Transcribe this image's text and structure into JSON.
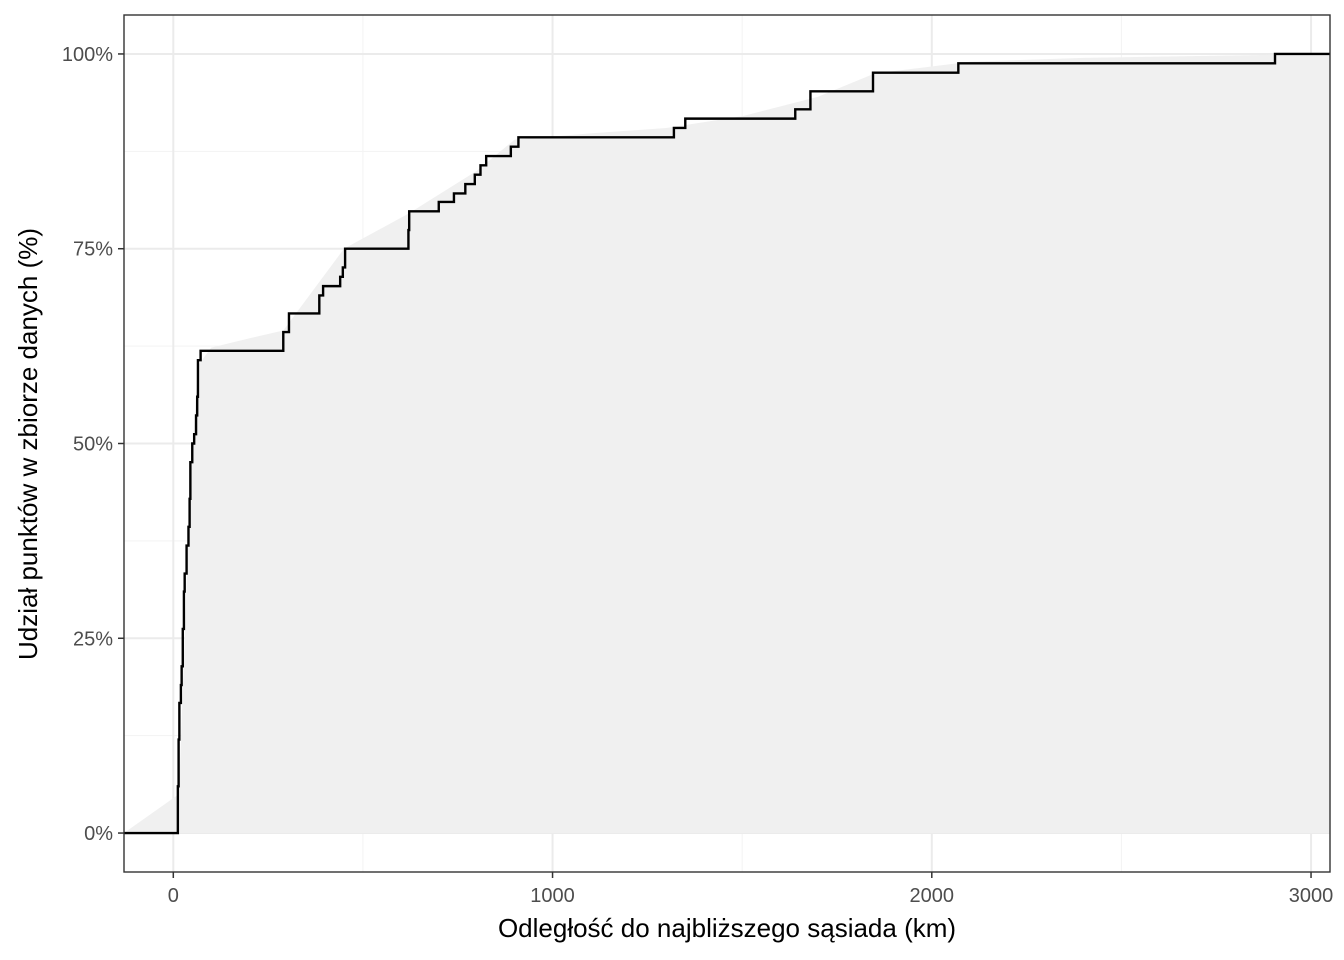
{
  "chart_data": {
    "type": "line",
    "title": "",
    "xlabel": "Odległość do najbliższego sąsiada (km)",
    "ylabel": "Udział punktów w zbiorze danych (%)",
    "xlim": [
      -130,
      3050
    ],
    "ylim": [
      -0.05,
      1.05
    ],
    "x_ticks": [
      0,
      1000,
      2000,
      3000
    ],
    "x_tick_labels": [
      "0",
      "1000",
      "2000",
      "3000"
    ],
    "y_ticks": [
      0,
      0.25,
      0.5,
      0.75,
      1.0
    ],
    "y_tick_labels": [
      "0%",
      "25%",
      "50%",
      "75%",
      "100%"
    ],
    "grid": true,
    "colors": {
      "line": "#000000",
      "fill": "#f0f0f0",
      "grid": "#ebebeb",
      "panel_border": "#333333"
    },
    "series": [
      {
        "type": "ecdf_step",
        "points": [
          [
            -130,
            0.0
          ],
          [
            10,
            0.0
          ],
          [
            12,
            0.06
          ],
          [
            14,
            0.12
          ],
          [
            16,
            0.167
          ],
          [
            20,
            0.19
          ],
          [
            22,
            0.214
          ],
          [
            25,
            0.262
          ],
          [
            28,
            0.31
          ],
          [
            30,
            0.333
          ],
          [
            35,
            0.369
          ],
          [
            40,
            0.393
          ],
          [
            43,
            0.429
          ],
          [
            45,
            0.476
          ],
          [
            50,
            0.5
          ],
          [
            55,
            0.512
          ],
          [
            60,
            0.536
          ],
          [
            63,
            0.56
          ],
          [
            65,
            0.607
          ],
          [
            72,
            0.619
          ],
          [
            290,
            0.643
          ],
          [
            305,
            0.667
          ],
          [
            385,
            0.69
          ],
          [
            395,
            0.702
          ],
          [
            440,
            0.714
          ],
          [
            447,
            0.726
          ],
          [
            453,
            0.75
          ],
          [
            620,
            0.774
          ],
          [
            622,
            0.798
          ],
          [
            700,
            0.81
          ],
          [
            740,
            0.821
          ],
          [
            770,
            0.833
          ],
          [
            795,
            0.845
          ],
          [
            810,
            0.857
          ],
          [
            825,
            0.869
          ],
          [
            890,
            0.881
          ],
          [
            910,
            0.893
          ],
          [
            1320,
            0.905
          ],
          [
            1350,
            0.917
          ],
          [
            1640,
            0.929
          ],
          [
            1680,
            0.952
          ],
          [
            1845,
            0.976
          ],
          [
            2070,
            0.988
          ],
          [
            2905,
            1.0
          ],
          [
            3050,
            1.0
          ]
        ]
      },
      {
        "type": "smoothed_area",
        "points": [
          [
            -130,
            0.0
          ],
          [
            15,
            0.05
          ],
          [
            30,
            0.25
          ],
          [
            45,
            0.45
          ],
          [
            65,
            0.6
          ],
          [
            100,
            0.623
          ],
          [
            200,
            0.635
          ],
          [
            290,
            0.645
          ],
          [
            450,
            0.75
          ],
          [
            620,
            0.795
          ],
          [
            800,
            0.85
          ],
          [
            900,
            0.89
          ],
          [
            1100,
            0.898
          ],
          [
            1300,
            0.905
          ],
          [
            1500,
            0.92
          ],
          [
            1700,
            0.945
          ],
          [
            1850,
            0.975
          ],
          [
            2100,
            0.99
          ],
          [
            2400,
            0.995
          ],
          [
            3050,
            1.0
          ]
        ]
      }
    ]
  }
}
